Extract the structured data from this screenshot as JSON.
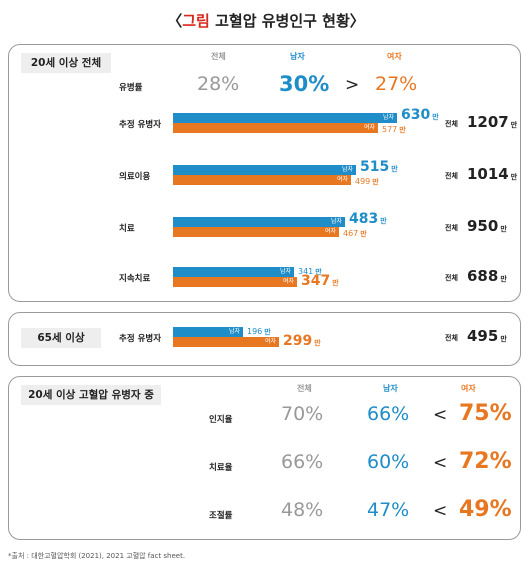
{
  "title": {
    "open": "〈",
    "highlight": "그림",
    "text": "고혈압 유병인구 현황",
    "close": "〉"
  },
  "headers": {
    "total": "전체",
    "male": "남자",
    "female": "여자"
  },
  "tags": {
    "male": "남자",
    "female": "여자",
    "total": "전체",
    "unit": "만"
  },
  "panel1": {
    "label": "20세 이상 전체",
    "prevalence": {
      "label": "유병률",
      "total": "28%",
      "male": "30%",
      "female": "27%",
      "sym": ">"
    }
  },
  "panel2": {
    "label": "65세 이상"
  },
  "panel3": {
    "label": "20세 이상 고혈압 유병자 중",
    "rows": [
      {
        "label": "인지율",
        "total": "70%",
        "male": "66%",
        "sym": "<",
        "female": "75%"
      },
      {
        "label": "치료율",
        "total": "66%",
        "male": "60%",
        "sym": "<",
        "female": "72%"
      },
      {
        "label": "조절률",
        "total": "48%",
        "male": "47%",
        "sym": "<",
        "female": "49%"
      }
    ]
  },
  "footnote": "*출처 : 대한고혈압학회 (2021), 2021 고혈압 fact sheet.",
  "colors": {
    "male": "#1f8dc8",
    "female": "#e87722",
    "accent": "#d8281d"
  },
  "chart_data": [
    {
      "type": "bar",
      "title": "20세 이상 전체",
      "categories": [
        "추정 유병자",
        "의료이용",
        "치료",
        "지속치료"
      ],
      "series": [
        {
          "name": "남자",
          "values": [
            630,
            515,
            483,
            341
          ]
        },
        {
          "name": "여자",
          "values": [
            577,
            499,
            467,
            347
          ]
        }
      ],
      "totals": [
        1207,
        1014,
        950,
        688
      ],
      "unit": "만"
    },
    {
      "type": "bar",
      "title": "65세 이상",
      "categories": [
        "추정 유병자"
      ],
      "series": [
        {
          "name": "남자",
          "values": [
            196
          ]
        },
        {
          "name": "여자",
          "values": [
            299
          ]
        }
      ],
      "totals": [
        495
      ],
      "unit": "만"
    }
  ]
}
